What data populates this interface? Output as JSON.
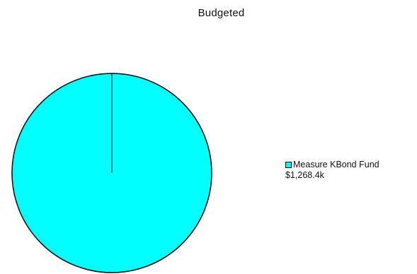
{
  "chart_data": {
    "type": "pie",
    "title": "Budgeted",
    "slices": [
      {
        "label": "Measure KBond Fund",
        "value_text": "$1,268.4k",
        "value": 1268.4,
        "color": "#00FFFF"
      }
    ],
    "legend_position": "right"
  }
}
